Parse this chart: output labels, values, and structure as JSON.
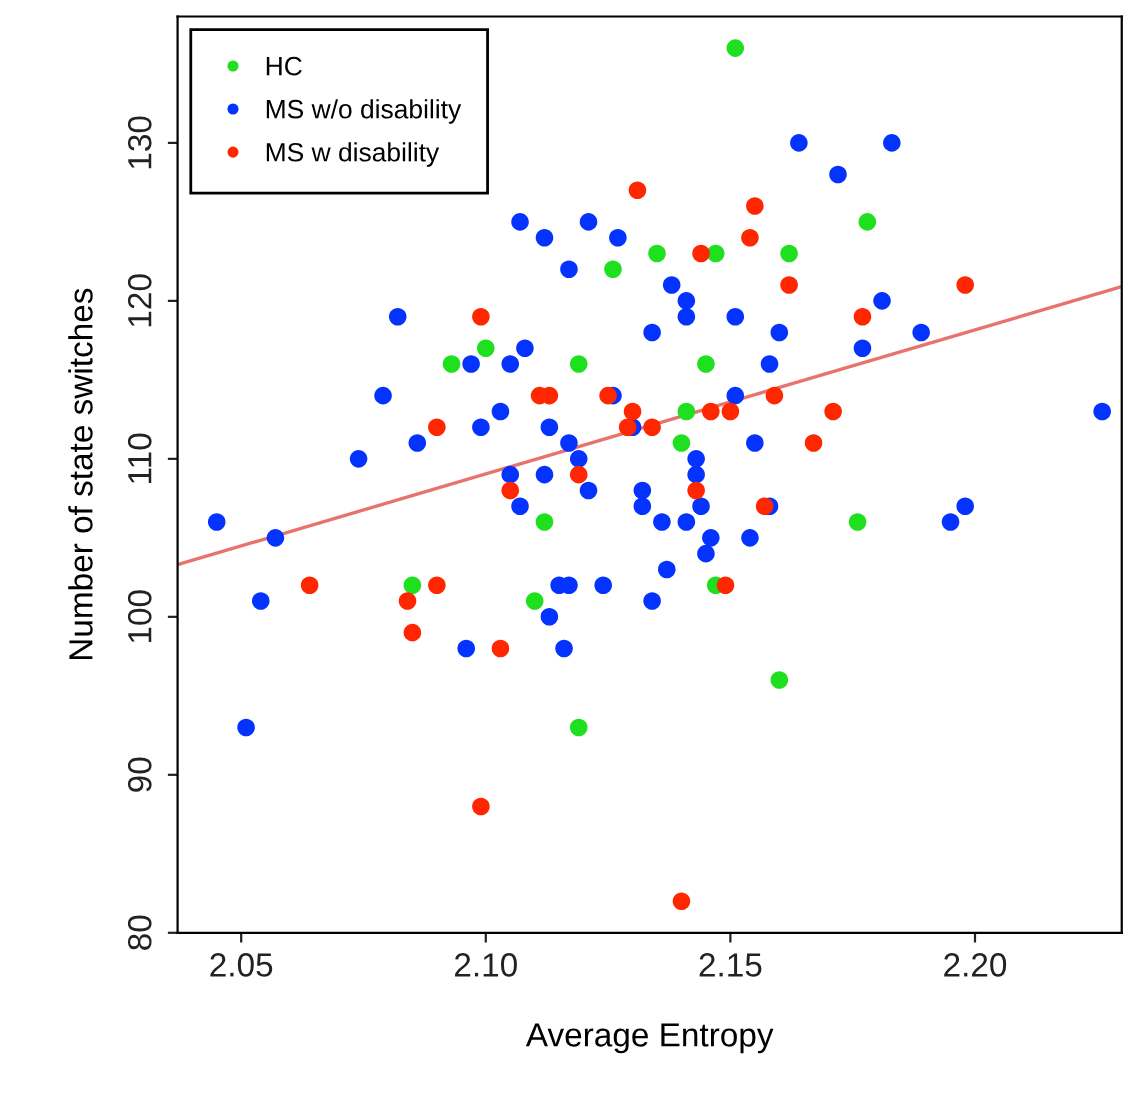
{
  "chart_data": {
    "type": "scatter",
    "xlabel": "Average Entropy",
    "ylabel": "Number of state switches",
    "xlim": [
      2.037,
      2.23
    ],
    "ylim": [
      80,
      138
    ],
    "xticks": [
      2.05,
      {
        "value": 2.1,
        "label": "2.10"
      },
      2.15,
      {
        "value": 2.2,
        "label": "2.20"
      }
    ],
    "yticks": [
      80,
      90,
      100,
      110,
      120,
      130
    ],
    "grid": false,
    "legend": "top left",
    "series": [
      {
        "name": "HC",
        "color": "#1fe01f",
        "marker": "circle",
        "x": [
          2.151,
          2.135,
          2.126,
          2.1,
          2.093,
          2.119,
          2.178,
          2.147,
          2.162,
          2.145,
          2.141,
          2.14,
          2.112,
          2.176,
          2.085,
          2.11,
          2.119,
          2.147,
          2.16
        ],
        "values": [
          136,
          123,
          122,
          117,
          116,
          116,
          125,
          123,
          123,
          116,
          113,
          111,
          106,
          106,
          102,
          101,
          93,
          102,
          96
        ]
      },
      {
        "name": "MS w/o disability",
        "color": "#0433ff",
        "marker": "circle",
        "x": [
          2.107,
          2.121,
          2.112,
          2.127,
          2.117,
          2.082,
          2.134,
          2.108,
          2.097,
          2.105,
          2.079,
          2.126,
          2.103,
          2.099,
          2.113,
          2.13,
          2.086,
          2.117,
          2.074,
          2.119,
          2.105,
          2.112,
          2.121,
          2.132,
          2.107,
          2.132,
          2.164,
          2.183,
          2.172,
          2.138,
          2.141,
          2.141,
          2.151,
          2.181,
          2.16,
          2.189,
          2.177,
          2.158,
          2.151,
          2.226,
          2.155,
          2.143,
          2.143,
          2.144,
          2.158,
          2.198,
          2.195,
          2.136,
          2.141,
          2.146,
          2.154,
          2.145,
          2.137,
          2.045,
          2.057,
          2.054,
          2.115,
          2.117,
          2.124,
          2.134,
          2.113,
          2.096,
          2.116,
          2.051
        ],
        "values": [
          125,
          125,
          124,
          124,
          122,
          119,
          118,
          117,
          116,
          116,
          114,
          114,
          113,
          112,
          112,
          112,
          111,
          111,
          110,
          110,
          109,
          109,
          108,
          108,
          107,
          107,
          130,
          130,
          128,
          121,
          120,
          119,
          119,
          120,
          118,
          118,
          117,
          116,
          114,
          113,
          111,
          110,
          109,
          107,
          107,
          107,
          106,
          106,
          106,
          105,
          105,
          104,
          103,
          106,
          105,
          101,
          102,
          102,
          102,
          101,
          100,
          98,
          98,
          93
        ]
      },
      {
        "name": "MS w disability",
        "color": "#ff2600",
        "marker": "circle",
        "x": [
          2.131,
          2.099,
          2.111,
          2.113,
          2.125,
          2.13,
          2.09,
          2.129,
          2.134,
          2.119,
          2.105,
          2.155,
          2.154,
          2.144,
          2.162,
          2.198,
          2.177,
          2.159,
          2.146,
          2.15,
          2.171,
          2.167,
          2.143,
          2.157,
          2.064,
          2.09,
          2.084,
          2.085,
          2.103,
          2.099,
          2.149,
          2.14
        ],
        "values": [
          127,
          119,
          114,
          114,
          114,
          113,
          112,
          112,
          112,
          109,
          108,
          126,
          124,
          123,
          121,
          121,
          119,
          114,
          113,
          113,
          113,
          111,
          108,
          107,
          102,
          102,
          101,
          99,
          98,
          88,
          102,
          82
        ]
      },
      {
        "type": "line",
        "color": "#e8736c",
        "marker": "none",
        "x": [
          2.037,
          2.23
        ],
        "values": [
          103.3,
          120.9
        ]
      }
    ]
  }
}
